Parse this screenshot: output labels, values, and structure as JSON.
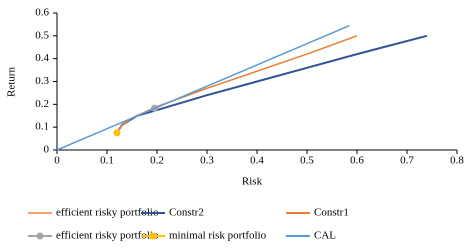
{
  "chart_data": {
    "type": "line",
    "x_label": "Risk",
    "y_label": "Return",
    "xlim": [
      0,
      0.8
    ],
    "xticks": [
      0,
      0.1,
      0.2,
      0.3,
      0.4,
      0.5,
      0.6,
      0.7,
      0.8
    ],
    "ylim": [
      0,
      0.6
    ],
    "yticks": [
      0,
      0.1,
      0.2,
      0.3,
      0.4,
      0.5,
      0.6
    ],
    "grid": false,
    "legend": "bottom",
    "series": [
      {
        "name": "efficient risky portfolio",
        "color": "#F4A36C",
        "mode": "line",
        "x": [
          0.12,
          0.13,
          0.16,
          0.195
        ],
        "values": [
          0.075,
          0.11,
          0.15,
          0.183
        ]
      },
      {
        "name": "Constr2",
        "color": "#2F5597",
        "mode": "line",
        "x": [
          0.12,
          0.13,
          0.16,
          0.2,
          0.3,
          0.4,
          0.5,
          0.6,
          0.74
        ],
        "values": [
          0.075,
          0.11,
          0.15,
          0.175,
          0.24,
          0.3,
          0.36,
          0.42,
          0.5
        ]
      },
      {
        "name": "Constr1",
        "color": "#ED7D31",
        "mode": "line",
        "x": [
          0.12,
          0.13,
          0.15,
          0.2,
          0.3,
          0.4,
          0.5,
          0.6
        ],
        "values": [
          0.075,
          0.11,
          0.14,
          0.19,
          0.27,
          0.345,
          0.42,
          0.5
        ]
      },
      {
        "name": "efficient risky portfolio",
        "color": "#A5A5A5",
        "mode": "marker",
        "x": [
          0.195
        ],
        "values": [
          0.183
        ]
      },
      {
        "name": "minimal risk portfolio",
        "color": "#FFC000",
        "mode": "marker",
        "x": [
          0.12
        ],
        "values": [
          0.075
        ]
      },
      {
        "name": "CAL",
        "color": "#5B9BD5",
        "mode": "line",
        "x": [
          0,
          0.585
        ],
        "values": [
          0,
          0.545
        ]
      }
    ]
  }
}
